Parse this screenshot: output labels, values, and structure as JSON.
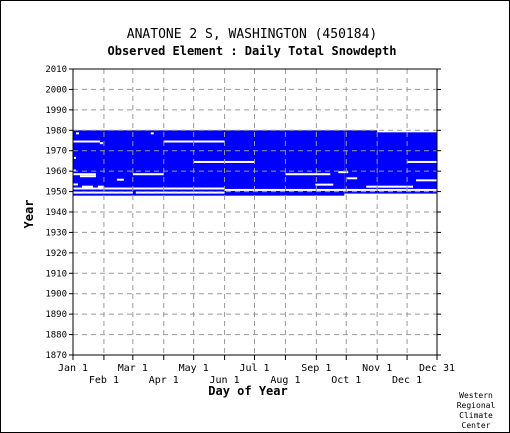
{
  "chart_data": {
    "type": "heatmap",
    "title": "ANATONE 2 S, WASHINGTON   (450184)",
    "subtitle": "Observed Element : Daily Total Snowdepth",
    "xlabel": "Day of Year",
    "ylabel": "Year",
    "ylim": [
      1870,
      2010
    ],
    "yticks": [
      1870,
      1880,
      1890,
      1900,
      1910,
      1920,
      1930,
      1940,
      1950,
      1960,
      1970,
      1980,
      1990,
      2000,
      2010
    ],
    "xlim": [
      1,
      366
    ],
    "xticks_upper": [
      {
        "label": "Jan 1",
        "day": 1
      },
      {
        "label": "Mar 1",
        "day": 61
      },
      {
        "label": "May 1",
        "day": 122
      },
      {
        "label": "Jul 1",
        "day": 183
      },
      {
        "label": "Sep 1",
        "day": 245
      },
      {
        "label": "Nov 1",
        "day": 306
      },
      {
        "label": "Dec 31",
        "day": 366
      }
    ],
    "xticks_lower": [
      {
        "label": "Feb 1",
        "day": 32
      },
      {
        "label": "Apr 1",
        "day": 92
      },
      {
        "label": "Jun 1",
        "day": 153
      },
      {
        "label": "Aug 1",
        "day": 214
      },
      {
        "label": "Oct 1",
        "day": 275
      },
      {
        "label": "Dec 1",
        "day": 336
      }
    ],
    "grid": true,
    "data_color": "#0000ff",
    "coverage": [
      {
        "start_year": 1948,
        "end_year": 1980,
        "start_day": 1,
        "end_day": 273
      },
      {
        "start_year": 1949,
        "end_year": 1980,
        "start_day": 273,
        "end_day": 306
      },
      {
        "start_year": 1949,
        "end_year": 1979,
        "start_day": 306,
        "end_day": 366
      }
    ],
    "gaps": [
      {
        "year": 1974.5,
        "start_day": 1,
        "end_day": 28
      },
      {
        "year": 1973.7,
        "start_day": 28,
        "end_day": 31
      },
      {
        "year": 1974.5,
        "start_day": 92,
        "end_day": 153
      },
      {
        "year": 1978.5,
        "start_day": 4,
        "end_day": 7
      },
      {
        "year": 1978.5,
        "start_day": 79,
        "end_day": 82
      },
      {
        "year": 1966.5,
        "start_day": 2,
        "end_day": 4
      },
      {
        "year": 1964.5,
        "start_day": 122,
        "end_day": 183
      },
      {
        "year": 1964.5,
        "start_day": 336,
        "end_day": 366
      },
      {
        "year": 1960.3,
        "start_day": 1,
        "end_day": 4
      },
      {
        "year": 1958.5,
        "start_day": 1,
        "end_day": 24
      },
      {
        "year": 1957.5,
        "start_day": 8,
        "end_day": 24
      },
      {
        "year": 1958.5,
        "start_day": 61,
        "end_day": 92
      },
      {
        "year": 1958.5,
        "start_day": 214,
        "end_day": 259
      },
      {
        "year": 1959.5,
        "start_day": 267,
        "end_day": 277
      },
      {
        "year": 1956.5,
        "start_day": 276,
        "end_day": 286
      },
      {
        "year": 1955.8,
        "start_day": 45,
        "end_day": 52
      },
      {
        "year": 1955.5,
        "start_day": 345,
        "end_day": 366
      },
      {
        "year": 1953.4,
        "start_day": 244,
        "end_day": 262
      },
      {
        "year": 1953.5,
        "start_day": 1,
        "end_day": 6
      },
      {
        "year": 1952.4,
        "start_day": 10,
        "end_day": 21
      },
      {
        "year": 1952.4,
        "start_day": 26,
        "end_day": 32
      },
      {
        "year": 1951.5,
        "start_day": 1,
        "end_day": 153
      },
      {
        "year": 1950.8,
        "start_day": 153,
        "end_day": 366
      },
      {
        "year": 1949.5,
        "start_day": 1,
        "end_day": 61
      },
      {
        "year": 1949.5,
        "start_day": 64,
        "end_day": 153
      },
      {
        "year": 1952.4,
        "start_day": 295,
        "end_day": 342
      }
    ]
  },
  "footer": {
    "credit_lines": [
      "Western",
      "Regional",
      "Climate",
      "Center"
    ]
  }
}
